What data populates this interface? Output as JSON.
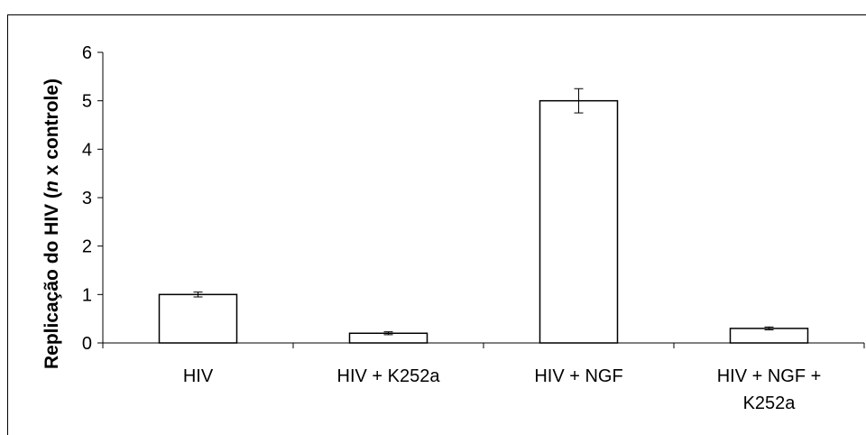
{
  "chart_data": {
    "type": "bar",
    "categories": [
      [
        "HIV"
      ],
      [
        "HIV + K252a"
      ],
      [
        "HIV + NGF"
      ],
      [
        "HIV + NGF +",
        "K252a"
      ]
    ],
    "values": [
      1.0,
      0.2,
      5.0,
      0.3
    ],
    "error": [
      0.05,
      0.03,
      0.25,
      0.03
    ],
    "ylabel": {
      "pre": "Replicação do HIV (",
      "italic": "n",
      "post": " x controle)"
    },
    "ylim": [
      0,
      6
    ],
    "yticks": [
      0,
      1,
      2,
      3,
      4,
      5,
      6
    ],
    "grid": false,
    "bar_fill": "#ffffff",
    "bar_stroke": "#000000"
  }
}
